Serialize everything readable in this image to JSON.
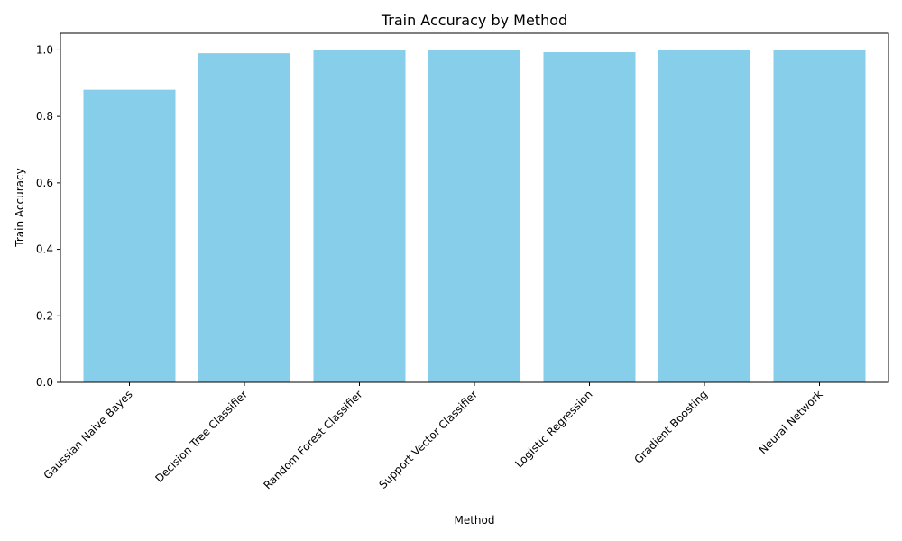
{
  "chart_data": {
    "type": "bar",
    "title": "Train Accuracy by Method",
    "xlabel": "Method",
    "ylabel": "Train Accuracy",
    "categories": [
      "Gaussian Naive Bayes",
      "Decision Tree Classifier",
      "Random Forest Classifier",
      "Support Vector Classifier",
      "Logistic Regression",
      "Gradient Boosting",
      "Neural Network"
    ],
    "values": [
      0.88,
      0.99,
      1.0,
      1.0,
      0.993,
      1.0,
      1.0
    ],
    "ylim": [
      0,
      1.05
    ],
    "yticks": [
      "0.0",
      "0.2",
      "0.4",
      "0.6",
      "0.8",
      "1.0"
    ],
    "grid": false,
    "bar_color": "#87CEEB"
  }
}
